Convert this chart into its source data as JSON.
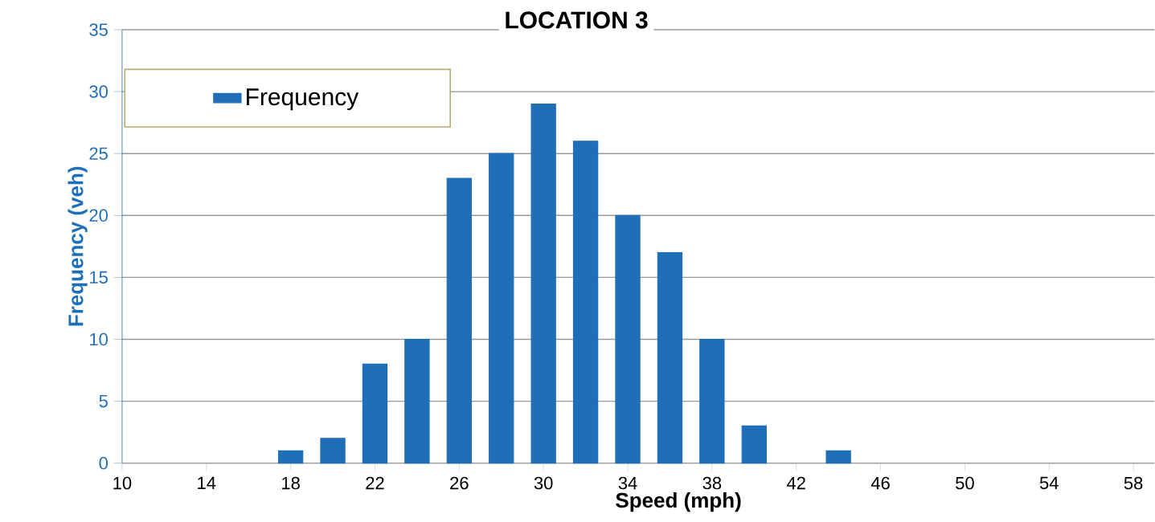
{
  "chart_data": {
    "type": "bar",
    "title": "LOCATION 3",
    "xlabel": "Speed (mph)",
    "ylabel": "Frequency (veh)",
    "x": [
      18,
      20,
      22,
      24,
      26,
      28,
      30,
      32,
      34,
      36,
      38,
      40,
      44
    ],
    "series": [
      {
        "name": "Frequency",
        "color": "#1f6fb8",
        "values": [
          1,
          2,
          8,
          10,
          23,
          25,
          29,
          26,
          20,
          17,
          10,
          3,
          1
        ]
      }
    ],
    "xlim": [
      10,
      59
    ],
    "xticks": [
      10,
      14,
      18,
      22,
      26,
      30,
      34,
      38,
      42,
      46,
      50,
      54,
      58
    ],
    "ylim": [
      0,
      35
    ],
    "yticks": [
      0,
      5,
      10,
      15,
      20,
      25,
      30,
      35
    ],
    "grid": "y",
    "legend": "top left"
  }
}
